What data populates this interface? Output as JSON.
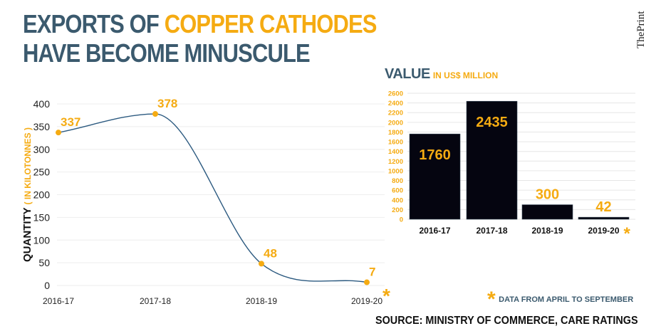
{
  "title": {
    "line1_part1": "EXPORTS  OF ",
    "line1_part2": "COPPER CATHODES",
    "line2": "HAVE BECOME MINUSCULE"
  },
  "brand": "ThePrint",
  "colors": {
    "navy": "#3b5a6e",
    "accent": "#f5ab12",
    "bar": "#050510",
    "line": "#2c5a80"
  },
  "chart_data": [
    {
      "type": "line",
      "title": "",
      "ylabel": "QUANTITY",
      "ylabel_unit": "( IN KILOTONNES )",
      "categories": [
        "2016-17",
        "2017-18",
        "2018-19",
        "2019-20"
      ],
      "values": [
        337,
        378,
        48,
        7
      ],
      "data_labels": [
        "337",
        "378",
        "48",
        "7"
      ],
      "ylim": [
        0,
        400
      ],
      "yticks": [
        0,
        50,
        100,
        150,
        200,
        250,
        300,
        350,
        400
      ],
      "ytick_labels": [
        "0",
        "50",
        "100",
        "150",
        "200",
        "250",
        "300",
        "350",
        "400"
      ],
      "grid": true,
      "asterisk_category": "2019-20",
      "asterisk": "*"
    },
    {
      "type": "bar",
      "title": "VALUE",
      "subtitle": "IN US$ MILLION",
      "categories": [
        "2016-17",
        "2017-18",
        "2018-19",
        "2019-20"
      ],
      "values": [
        1760,
        2435,
        300,
        42
      ],
      "data_labels": [
        "1760",
        "2435",
        "300",
        "42"
      ],
      "ylim": [
        0,
        2600
      ],
      "yticks": [
        0,
        200,
        400,
        600,
        800,
        1000,
        1200,
        1400,
        1600,
        1800,
        2000,
        2200,
        2400,
        2600
      ],
      "ytick_labels": [
        "0",
        "200",
        "400",
        "600",
        "800",
        "1000",
        "1200",
        "1400",
        "1600",
        "1800",
        "2000",
        "2200",
        "2400",
        "2600"
      ],
      "grid": true,
      "asterisk_category": "2019-20",
      "asterisk": "*"
    }
  ],
  "footnote": {
    "symbol": "*",
    "text": "DATA FROM APRIL TO SEPTEMBER"
  },
  "source": "SOURCE:  MINISTRY OF COMMERCE, CARE RATINGS"
}
